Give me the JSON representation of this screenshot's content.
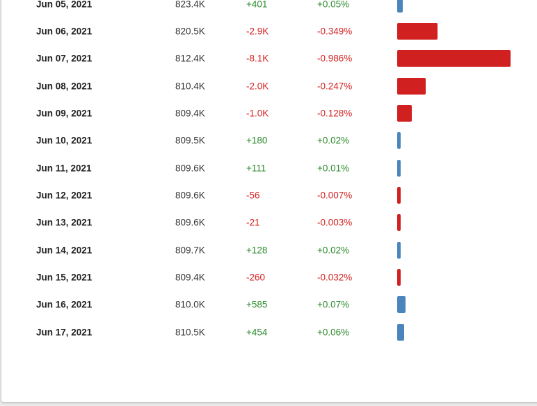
{
  "colors": {
    "positive_text": "#2c8a2c",
    "negative_text": "#d42222",
    "positive_bar": "#4a86bb",
    "negative_bar": "#d12020"
  },
  "rows": [
    {
      "date": "Jun 05, 2021",
      "value": "823.4K",
      "change": "+401",
      "pct": "+0.05%",
      "dir": "pos",
      "pct_value": 0.05
    },
    {
      "date": "Jun 06, 2021",
      "value": "820.5K",
      "change": "-2.9K",
      "pct": "-0.349%",
      "dir": "neg",
      "pct_value": -0.349
    },
    {
      "date": "Jun 07, 2021",
      "value": "812.4K",
      "change": "-8.1K",
      "pct": "-0.986%",
      "dir": "neg",
      "pct_value": -0.986
    },
    {
      "date": "Jun 08, 2021",
      "value": "810.4K",
      "change": "-2.0K",
      "pct": "-0.247%",
      "dir": "neg",
      "pct_value": -0.247
    },
    {
      "date": "Jun 09, 2021",
      "value": "809.4K",
      "change": "-1.0K",
      "pct": "-0.128%",
      "dir": "neg",
      "pct_value": -0.128
    },
    {
      "date": "Jun 10, 2021",
      "value": "809.5K",
      "change": "+180",
      "pct": "+0.02%",
      "dir": "pos",
      "pct_value": 0.02
    },
    {
      "date": "Jun 11, 2021",
      "value": "809.6K",
      "change": "+111",
      "pct": "+0.01%",
      "dir": "pos",
      "pct_value": 0.01
    },
    {
      "date": "Jun 12, 2021",
      "value": "809.6K",
      "change": "-56",
      "pct": "-0.007%",
      "dir": "neg",
      "pct_value": -0.007
    },
    {
      "date": "Jun 13, 2021",
      "value": "809.6K",
      "change": "-21",
      "pct": "-0.003%",
      "dir": "neg",
      "pct_value": -0.003
    },
    {
      "date": "Jun 14, 2021",
      "value": "809.7K",
      "change": "+128",
      "pct": "+0.02%",
      "dir": "pos",
      "pct_value": 0.02
    },
    {
      "date": "Jun 15, 2021",
      "value": "809.4K",
      "change": "-260",
      "pct": "-0.032%",
      "dir": "neg",
      "pct_value": -0.032
    },
    {
      "date": "Jun 16, 2021",
      "value": "810.0K",
      "change": "+585",
      "pct": "+0.07%",
      "dir": "pos",
      "pct_value": 0.07
    },
    {
      "date": "Jun 17, 2021",
      "value": "810.5K",
      "change": "+454",
      "pct": "+0.06%",
      "dir": "pos",
      "pct_value": 0.06
    }
  ]
}
